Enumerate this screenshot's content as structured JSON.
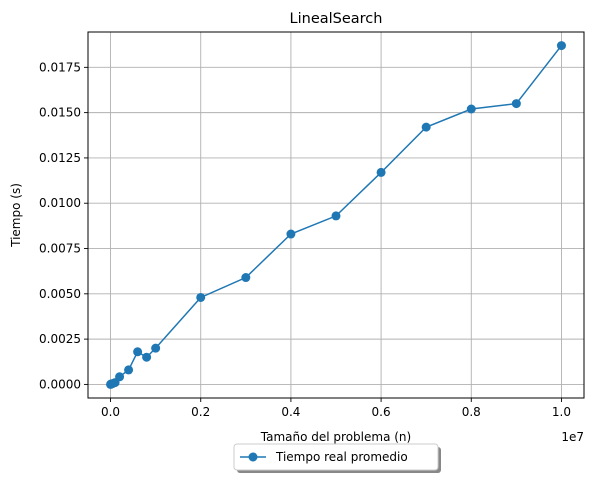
{
  "chart_data": {
    "type": "line",
    "title": "LinealSearch",
    "xlabel": "Tamaño del problema (n)",
    "ylabel": "Tiempo (s)",
    "x_offset_text": "1e7",
    "xlim": [
      -0.05,
      1.05
    ],
    "ylim": [
      -0.00075,
      0.01945
    ],
    "x_ticks": [
      0.0,
      0.2,
      0.4,
      0.6,
      0.8,
      1.0
    ],
    "x_tick_labels": [
      "0.0",
      "0.2",
      "0.4",
      "0.6",
      "0.8",
      "1.0"
    ],
    "y_ticks": [
      0.0,
      0.0025,
      0.005,
      0.0075,
      0.01,
      0.0125,
      0.015,
      0.0175
    ],
    "y_tick_labels": [
      "0.0000",
      "0.0025",
      "0.0050",
      "0.0075",
      "0.0100",
      "0.0125",
      "0.0150",
      "0.0175"
    ],
    "grid": true,
    "legend_position": "bottom-center",
    "series": [
      {
        "name": "Tiempo real promedio",
        "color": "#1f77b4",
        "marker": "circle",
        "x": [
          0.0,
          0.001,
          0.005,
          0.01,
          0.02,
          0.04,
          0.06,
          0.08,
          0.1,
          0.2,
          0.3,
          0.4,
          0.5,
          0.6,
          0.7,
          0.8,
          0.9,
          1.0
        ],
        "y": [
          0.0,
          2e-05,
          5e-05,
          0.0001,
          0.00042,
          0.0008,
          0.0018,
          0.0015,
          0.002,
          0.0048,
          0.0059,
          0.0083,
          0.0093,
          0.0117,
          0.0142,
          0.0152,
          0.0155,
          0.0187
        ]
      }
    ]
  }
}
